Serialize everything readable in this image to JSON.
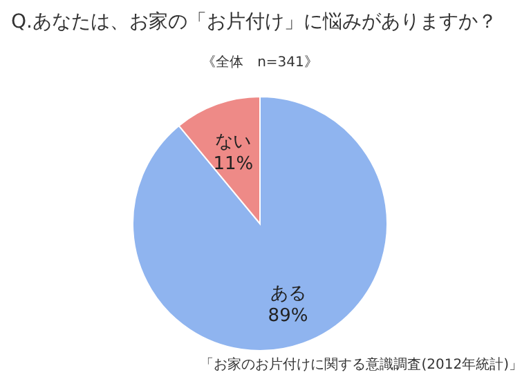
{
  "chart_data": {
    "type": "pie",
    "title": "Q.あなたは、お家の「お片付け」に悩みがありますか？",
    "subtitle": "《全体　n=341》",
    "categories": [
      "ある",
      "ない"
    ],
    "values": [
      89,
      11
    ],
    "colors": [
      "#8fb4ef",
      "#ee8a87"
    ],
    "value_labels": [
      "89%",
      "11%"
    ],
    "annotations": [
      "「お家のお片付けに関する意識調査(2012年統計)」"
    ]
  }
}
